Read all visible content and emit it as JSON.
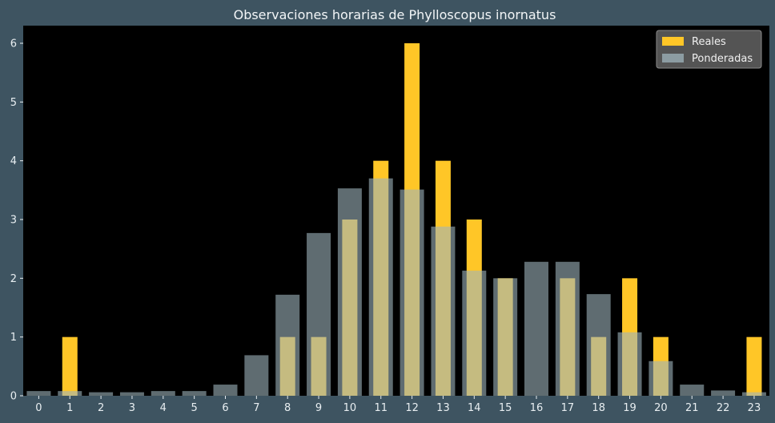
{
  "chart_data": {
    "type": "bar",
    "title": "Observaciones horarias de Phylloscopus inornatus",
    "xlabel": "",
    "ylabel": "",
    "categories": [
      "0",
      "1",
      "2",
      "3",
      "4",
      "5",
      "6",
      "7",
      "8",
      "9",
      "10",
      "11",
      "12",
      "13",
      "14",
      "15",
      "16",
      "17",
      "18",
      "19",
      "20",
      "21",
      "22",
      "23"
    ],
    "series": [
      {
        "name": "Reales",
        "color": "#ffc627",
        "values": [
          0,
          1,
          0,
          0,
          0,
          0,
          0,
          0,
          1,
          1,
          3,
          4,
          6,
          4,
          3,
          2,
          0,
          2,
          1,
          2,
          1,
          0,
          0,
          1
        ]
      },
      {
        "name": "Ponderadas",
        "color": "#9fb4bc",
        "values": [
          0.08,
          0.08,
          0.06,
          0.06,
          0.08,
          0.08,
          0.19,
          0.69,
          1.72,
          2.77,
          3.53,
          3.7,
          3.51,
          2.88,
          2.13,
          2.0,
          2.28,
          2.28,
          1.73,
          1.08,
          0.59,
          0.19,
          0.09,
          0.06
        ]
      }
    ],
    "ylim": [
      0,
      6.3
    ],
    "yticks": [
      0,
      1,
      2,
      3,
      4,
      5,
      6
    ],
    "grid": false,
    "legend_position": "top-right",
    "background": "#000000",
    "figure_background": "#3e5461"
  }
}
